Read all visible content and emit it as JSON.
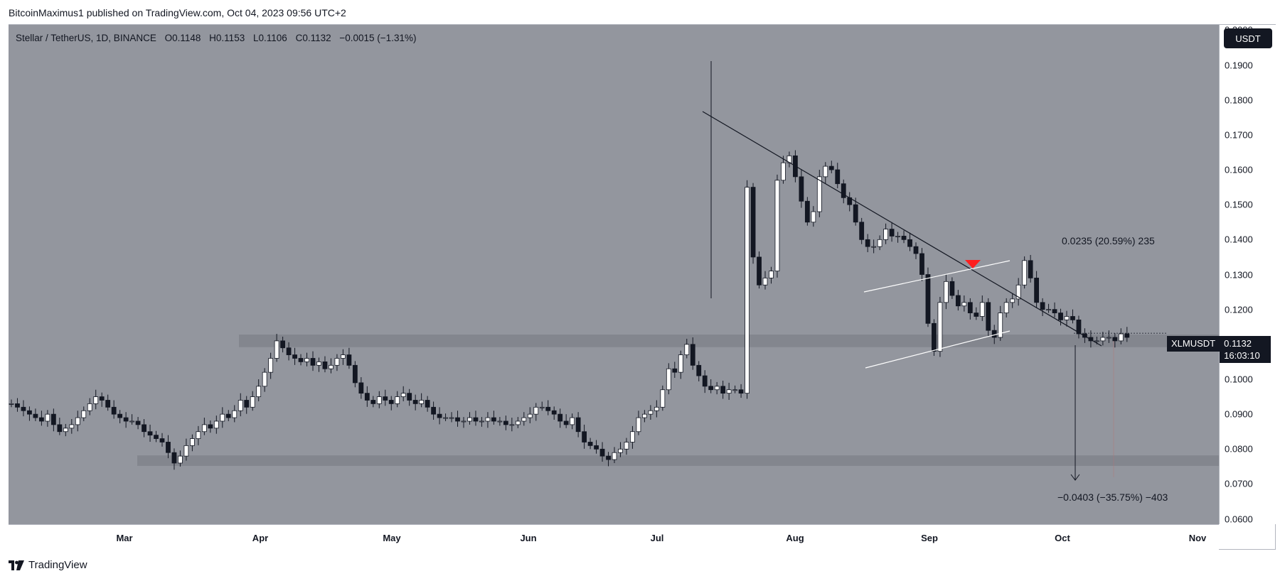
{
  "header": {
    "publisher": "BitcoinMaximus1 published on TradingView.com, Oct 04, 2023 09:56 UTC+2"
  },
  "symbol_bar": {
    "title": "Stellar / TetherUS, 1D, BINANCE",
    "open_label": "O",
    "open": "0.1148",
    "high_label": "H",
    "high": "0.1153",
    "low_label": "L",
    "low": "0.1106",
    "close_label": "C",
    "close": "0.1132",
    "change": "−0.0015 (−1.31%)"
  },
  "currency_button": "USDT",
  "price_tag": {
    "symbol": "XLMUSDT",
    "price": "0.1132",
    "countdown": "16:03:10"
  },
  "annotations": {
    "upper_measure": "0.0235 (20.59%) 235",
    "lower_measure": "−0.0403 (−35.75%) −403"
  },
  "footer": {
    "brand": "TradingView"
  },
  "colors": {
    "plot_bg": "#93969e",
    "candle_up": "#ffffff",
    "candle_down": "#131722",
    "marker": "#ff1f1f",
    "zone": "#7e8088"
  },
  "chart_data": {
    "type": "candlestick",
    "title": "Stellar / TetherUS, 1D, BINANCE",
    "y_ticks": [
      "0.2000",
      "0.1900",
      "0.1800",
      "0.1700",
      "0.1600",
      "0.1500",
      "0.1400",
      "0.1300",
      "0.1200",
      "0.1100",
      "0.1000",
      "0.0900",
      "0.0800",
      "0.0700",
      "0.0600"
    ],
    "x_ticks": [
      "Mar",
      "Apr",
      "May",
      "Jun",
      "Jul",
      "Aug",
      "Sep",
      "Oct",
      "Nov"
    ],
    "ylim": [
      0.0585,
      0.2015
    ],
    "support_zones": [
      [
        0.1092,
        0.1128
      ],
      [
        0.0752,
        0.0782
      ]
    ],
    "close_series": [
      0.093,
      0.092,
      0.091,
      0.09,
      0.089,
      0.088,
      0.09,
      0.087,
      0.085,
      0.086,
      0.087,
      0.089,
      0.091,
      0.093,
      0.095,
      0.094,
      0.092,
      0.09,
      0.089,
      0.088,
      0.088,
      0.087,
      0.085,
      0.084,
      0.083,
      0.082,
      0.079,
      0.076,
      0.078,
      0.081,
      0.083,
      0.085,
      0.087,
      0.086,
      0.088,
      0.09,
      0.089,
      0.091,
      0.094,
      0.092,
      0.095,
      0.098,
      0.102,
      0.106,
      0.111,
      0.109,
      0.107,
      0.106,
      0.105,
      0.106,
      0.104,
      0.105,
      0.103,
      0.104,
      0.106,
      0.107,
      0.104,
      0.099,
      0.096,
      0.094,
      0.093,
      0.095,
      0.094,
      0.093,
      0.095,
      0.096,
      0.094,
      0.093,
      0.094,
      0.092,
      0.09,
      0.089,
      0.089,
      0.089,
      0.088,
      0.088,
      0.089,
      0.088,
      0.088,
      0.089,
      0.088,
      0.088,
      0.087,
      0.087,
      0.088,
      0.089,
      0.09,
      0.092,
      0.092,
      0.091,
      0.09,
      0.088,
      0.087,
      0.089,
      0.085,
      0.082,
      0.081,
      0.08,
      0.078,
      0.077,
      0.079,
      0.08,
      0.082,
      0.085,
      0.089,
      0.09,
      0.091,
      0.092,
      0.097,
      0.103,
      0.102,
      0.107,
      0.11,
      0.104,
      0.101,
      0.098,
      0.097,
      0.098,
      0.096,
      0.097,
      0.097,
      0.096,
      0.155,
      0.135,
      0.127,
      0.129,
      0.131,
      0.157,
      0.162,
      0.164,
      0.158,
      0.151,
      0.145,
      0.148,
      0.158,
      0.161,
      0.16,
      0.156,
      0.152,
      0.15,
      0.145,
      0.14,
      0.138,
      0.138,
      0.14,
      0.143,
      0.141,
      0.141,
      0.14,
      0.138,
      0.136,
      0.13,
      0.116,
      0.108,
      0.122,
      0.128,
      0.124,
      0.121,
      0.122,
      0.119,
      0.118,
      0.122,
      0.114,
      0.112,
      0.119,
      0.122,
      0.123,
      0.127,
      0.134,
      0.129,
      0.122,
      0.12,
      0.12,
      0.119,
      0.117,
      0.118,
      0.117,
      0.113,
      0.112,
      0.111,
      0.111,
      0.112,
      0.112,
      0.111,
      0.113,
      0.112
    ]
  }
}
